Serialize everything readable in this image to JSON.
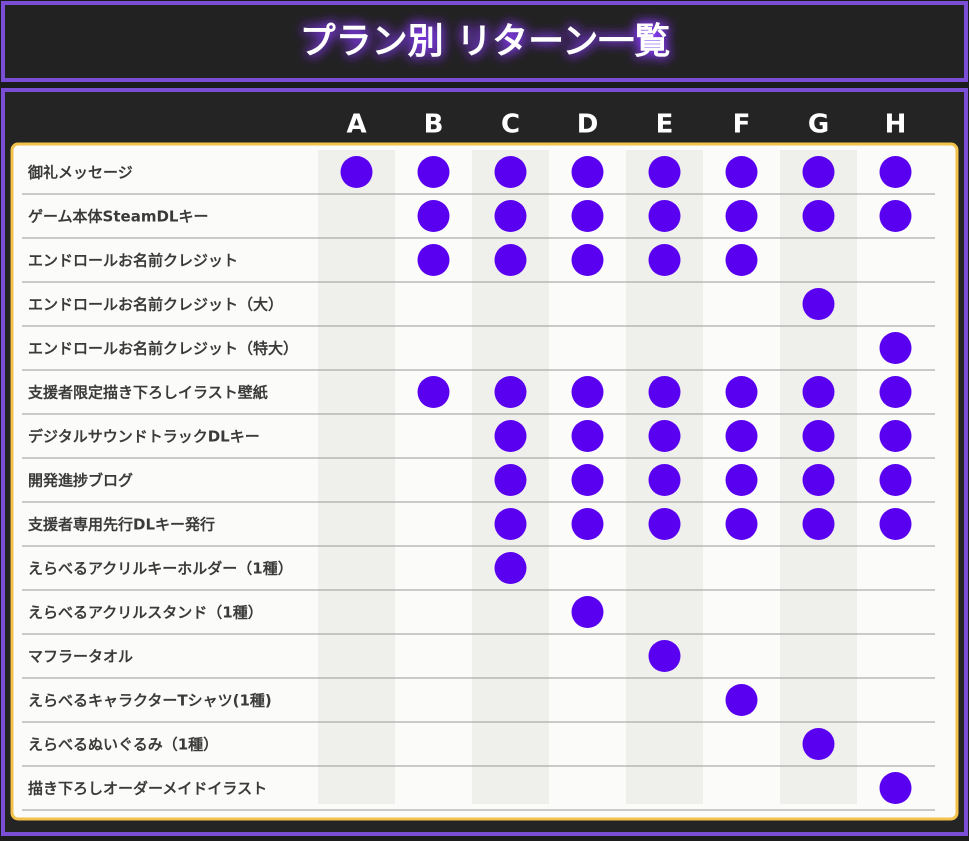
{
  "title": "プラン別 リターン一覧",
  "columns": [
    "A",
    "B",
    "C",
    "D",
    "E",
    "F",
    "G",
    "H"
  ],
  "rows": [
    {
      "label": "御礼メッセージ",
      "cells": [
        true,
        true,
        true,
        true,
        true,
        true,
        true,
        true
      ]
    },
    {
      "label": "ゲーム本体SteamDLキー",
      "cells": [
        false,
        true,
        true,
        true,
        true,
        true,
        true,
        true
      ]
    },
    {
      "label": "エンドロールお名前クレジット",
      "cells": [
        false,
        true,
        true,
        true,
        true,
        true,
        false,
        false
      ]
    },
    {
      "label": "エンドロールお名前クレジット（大）",
      "cells": [
        false,
        false,
        false,
        false,
        false,
        false,
        true,
        false
      ]
    },
    {
      "label": "エンドロールお名前クレジット（特大）",
      "cells": [
        false,
        false,
        false,
        false,
        false,
        false,
        false,
        true
      ]
    },
    {
      "label": "支援者限定描き下ろしイラスト壁紙",
      "cells": [
        false,
        true,
        true,
        true,
        true,
        true,
        true,
        true
      ]
    },
    {
      "label": "デジタルサウンドトラックDLキー",
      "cells": [
        false,
        false,
        true,
        true,
        true,
        true,
        true,
        true
      ]
    },
    {
      "label": "開発進捗ブログ",
      "cells": [
        false,
        false,
        true,
        true,
        true,
        true,
        true,
        true
      ]
    },
    {
      "label": "支援者専用先行DLキー発行",
      "cells": [
        false,
        false,
        true,
        true,
        true,
        true,
        true,
        true
      ]
    },
    {
      "label": "えらべるアクリルキーホルダー（1種）",
      "cells": [
        false,
        false,
        true,
        false,
        false,
        false,
        false,
        false
      ]
    },
    {
      "label": "えらべるアクリルスタンド（1種）",
      "cells": [
        false,
        false,
        false,
        true,
        false,
        false,
        false,
        false
      ]
    },
    {
      "label": "マフラータオル",
      "cells": [
        false,
        false,
        false,
        false,
        true,
        false,
        false,
        false
      ]
    },
    {
      "label": "えらべるキャラクターTシャツ(1種)",
      "cells": [
        false,
        false,
        false,
        false,
        false,
        true,
        false,
        false
      ]
    },
    {
      "label": "えらべるぬいぐるみ（1種）",
      "cells": [
        false,
        false,
        false,
        false,
        false,
        false,
        true,
        false
      ]
    },
    {
      "label": "描き下ろしオーダーメイドイラスト",
      "cells": [
        false,
        false,
        false,
        false,
        false,
        false,
        false,
        true
      ]
    }
  ]
}
